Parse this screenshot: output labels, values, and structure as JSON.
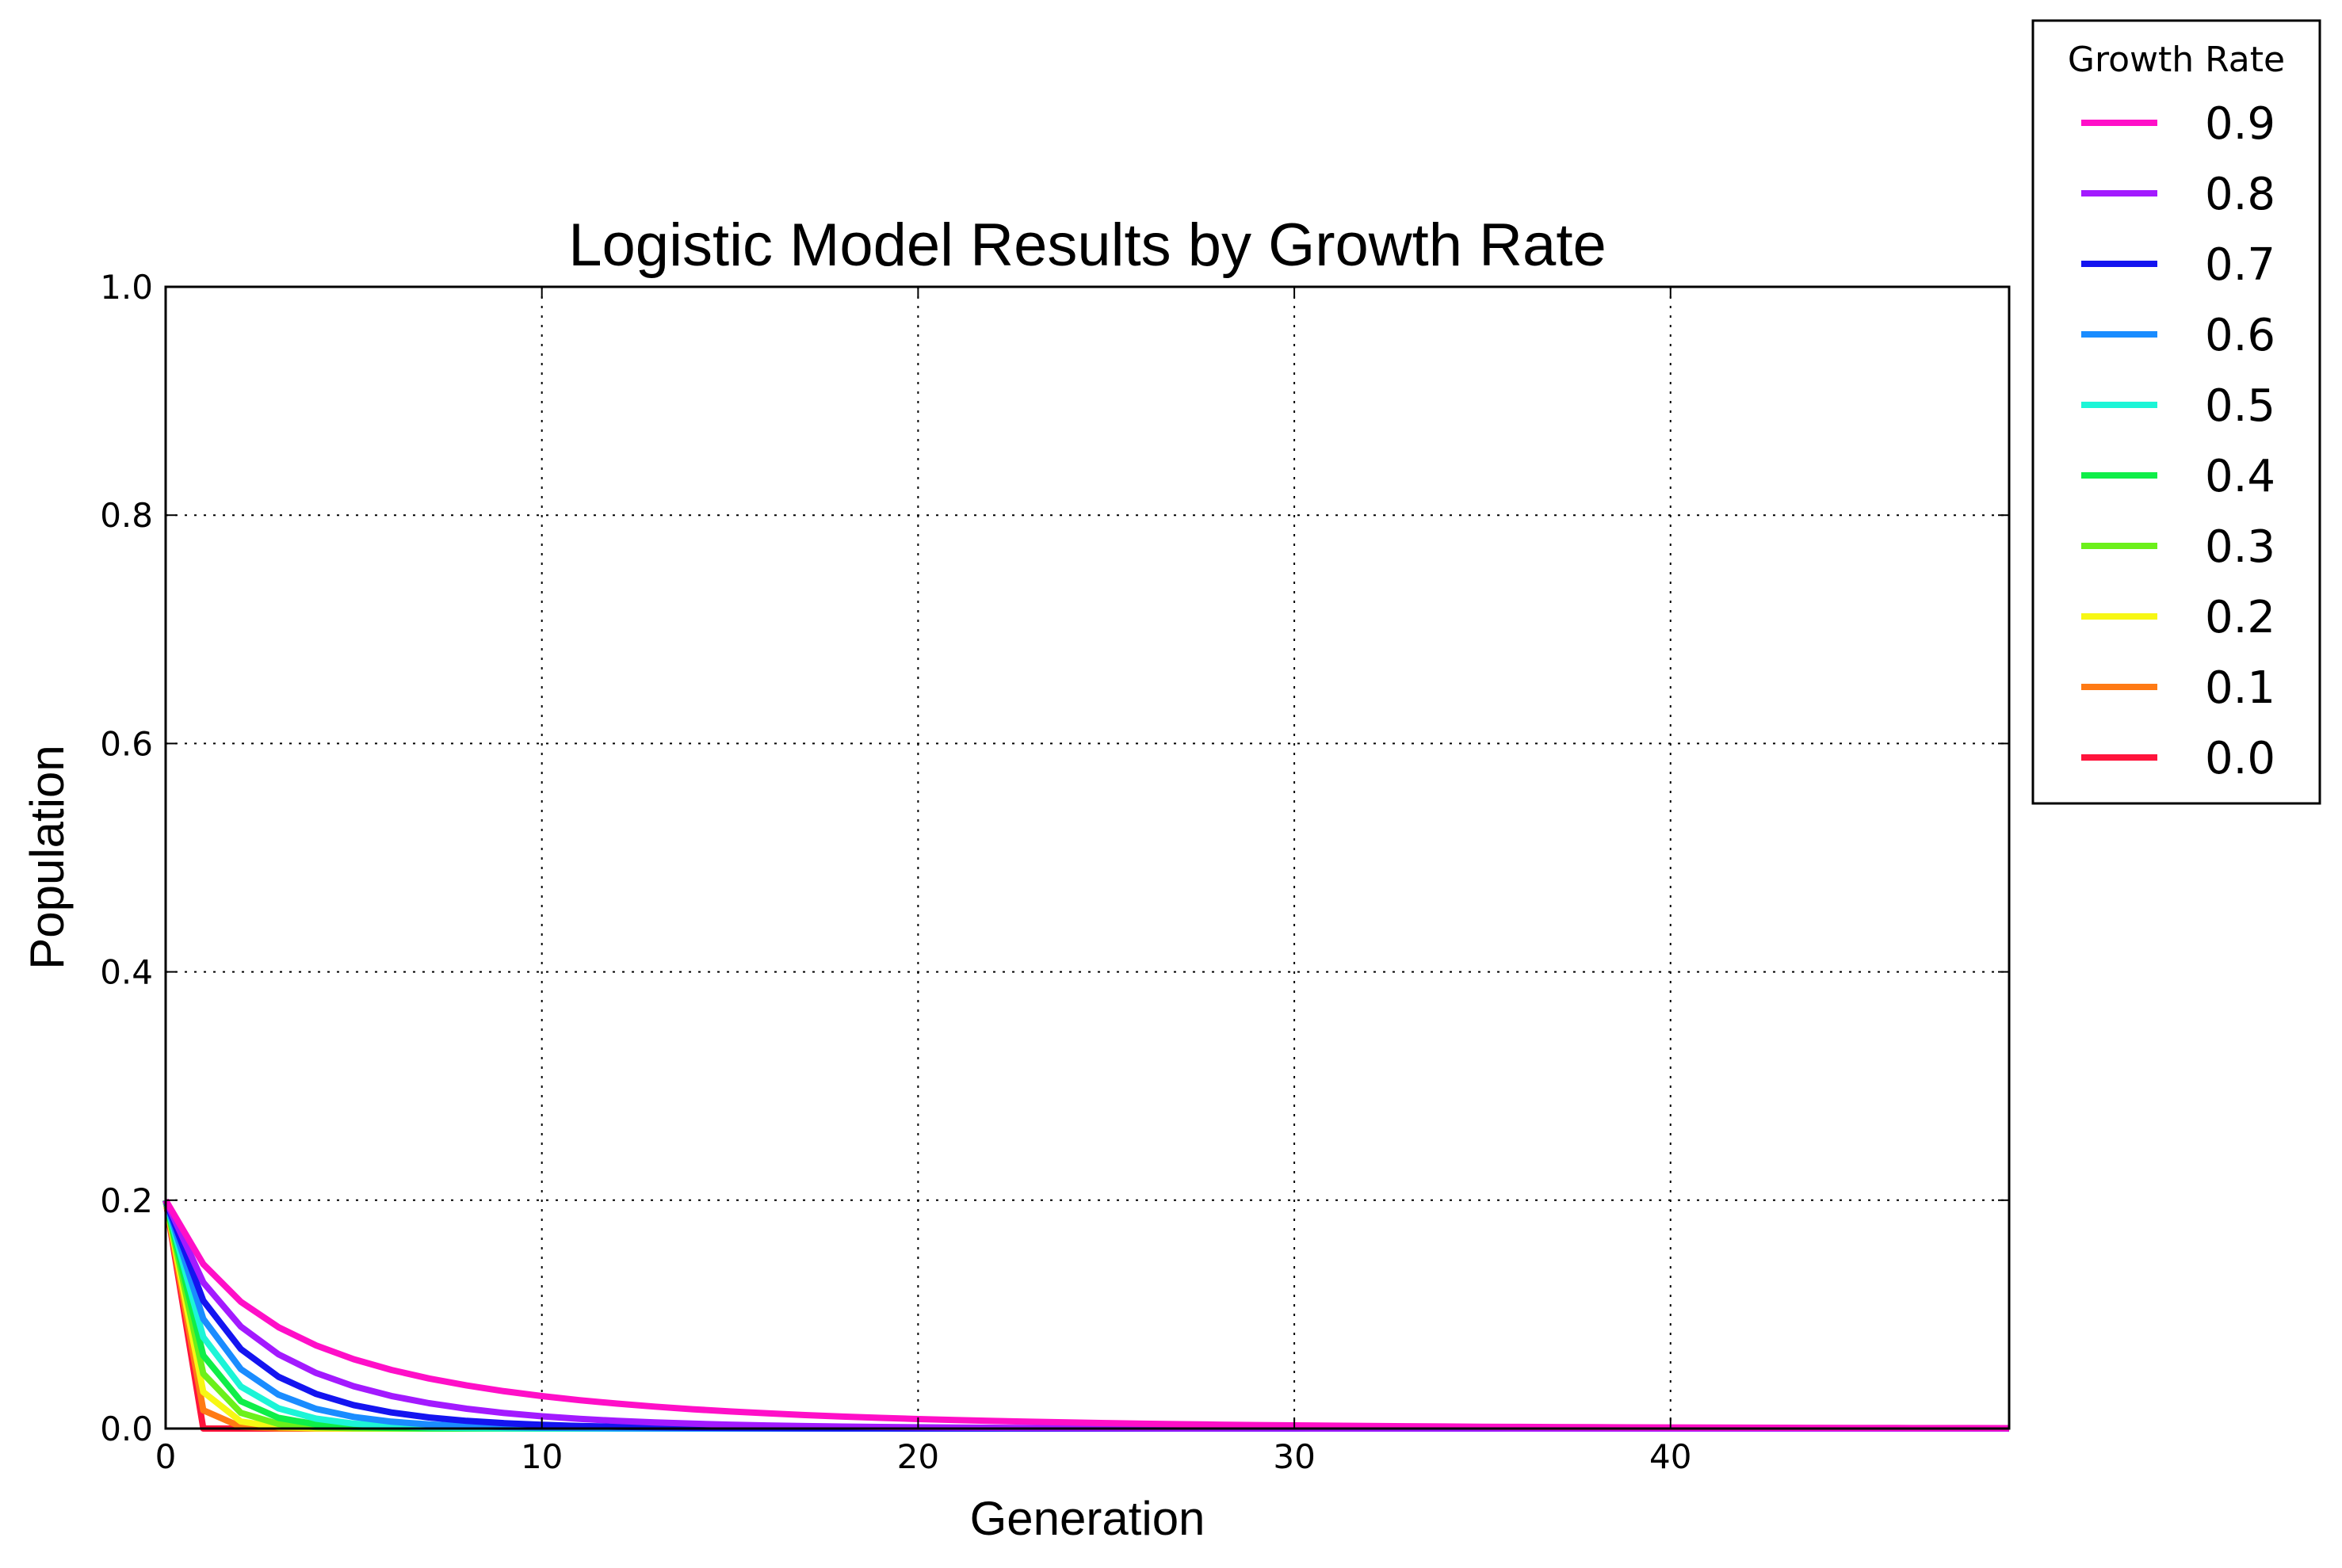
{
  "chart_data": {
    "type": "line",
    "title": "Logistic Model Results by Growth Rate",
    "xlabel": "Generation",
    "ylabel": "Population",
    "xlim": [
      0,
      49
    ],
    "ylim": [
      0,
      1.0
    ],
    "x_ticks": [
      0,
      10,
      20,
      30,
      40
    ],
    "y_ticks": [
      "0.0",
      "0.2",
      "0.4",
      "0.6",
      "0.8",
      "1.0"
    ],
    "grid": true,
    "legend": {
      "title": "Growth Rate",
      "placement": "outside-top-right"
    },
    "initial_value": 0.2,
    "generations": 50,
    "series": [
      {
        "name": "0.9",
        "growth_rate": 0.9,
        "color": "#ff0fc8"
      },
      {
        "name": "0.8",
        "growth_rate": 0.8,
        "color": "#a31aff"
      },
      {
        "name": "0.7",
        "growth_rate": 0.7,
        "color": "#1414f0"
      },
      {
        "name": "0.6",
        "growth_rate": 0.6,
        "color": "#1a8cff"
      },
      {
        "name": "0.5",
        "growth_rate": 0.5,
        "color": "#1cf5d7"
      },
      {
        "name": "0.4",
        "growth_rate": 0.4,
        "color": "#0fee48"
      },
      {
        "name": "0.3",
        "growth_rate": 0.3,
        "color": "#6cf01a"
      },
      {
        "name": "0.2",
        "growth_rate": 0.2,
        "color": "#f7f714"
      },
      {
        "name": "0.1",
        "growth_rate": 0.1,
        "color": "#ff7a14"
      },
      {
        "name": "0.0",
        "growth_rate": 0.0,
        "color": "#ff143c"
      }
    ]
  }
}
